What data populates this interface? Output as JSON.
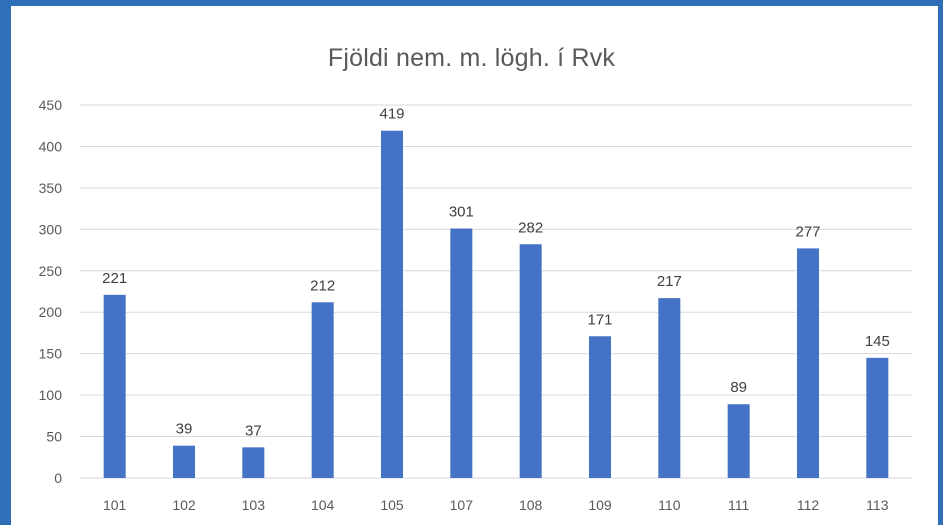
{
  "chart_data": {
    "type": "bar",
    "title": "Fjöldi nem. m. lögh. í Rvk",
    "xlabel": "",
    "ylabel": "",
    "categories": [
      "101",
      "102",
      "103",
      "104",
      "105",
      "107",
      "108",
      "109",
      "110",
      "111",
      "112",
      "113"
    ],
    "values": [
      221,
      39,
      37,
      212,
      419,
      301,
      282,
      171,
      217,
      89,
      277,
      145
    ],
    "ylim": [
      0,
      450
    ],
    "yticks": [
      "0",
      "50",
      "100",
      "150",
      "200",
      "250",
      "300",
      "350",
      "400",
      "450"
    ],
    "grid": true,
    "legend": "none",
    "colors": {
      "bar": "#4472c4",
      "gridline": "#d9d9d9",
      "frame": "#2f6fb7"
    }
  }
}
